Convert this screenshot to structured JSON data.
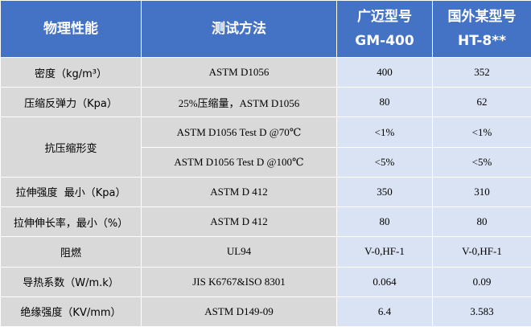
{
  "header": {
    "columns": [
      "物理性能",
      "测试方法",
      [
        "广迈型号",
        "GM-400"
      ],
      [
        "国外某型号",
        "HT-8**"
      ]
    ]
  },
  "table": {
    "rows": [
      {
        "property": "密度（kg/m³）",
        "tests": [
          [
            "ASTM D1056",
            "400",
            "352"
          ]
        ]
      },
      {
        "property": "压缩反弹力（Kpa）",
        "tests": [
          [
            "25%压缩量，ASTM D1056",
            "80",
            "62"
          ]
        ]
      },
      {
        "property": "抗压缩形变",
        "tests": [
          [
            "ASTM D1056 Test D @70℃",
            "<1%",
            "<1%"
          ],
          [
            "ASTM D1056 Test D @100℃",
            "<5%",
            "<5%"
          ]
        ]
      },
      {
        "property": "拉伸强度  最小（Kpa）",
        "tests": [
          [
            "ASTM D 412",
            "350",
            "310"
          ]
        ]
      },
      {
        "property": "拉伸伸长率，最小（%）",
        "tests": [
          [
            "ASTM D 412",
            "80",
            "80"
          ]
        ]
      },
      {
        "property": "阻燃",
        "tests": [
          [
            "UL94",
            "V-0,HF-1",
            "V-0,HF-1"
          ]
        ]
      },
      {
        "property": "导热系数（W/m.k）",
        "tests": [
          [
            "JIS K6767&ISO 8301",
            "0.064",
            "0.09"
          ]
        ]
      },
      {
        "property": "绝缘强度（KV/mm）",
        "tests": [
          [
            "ASTM D149-09",
            "6.4",
            "3.583"
          ]
        ]
      }
    ]
  }
}
